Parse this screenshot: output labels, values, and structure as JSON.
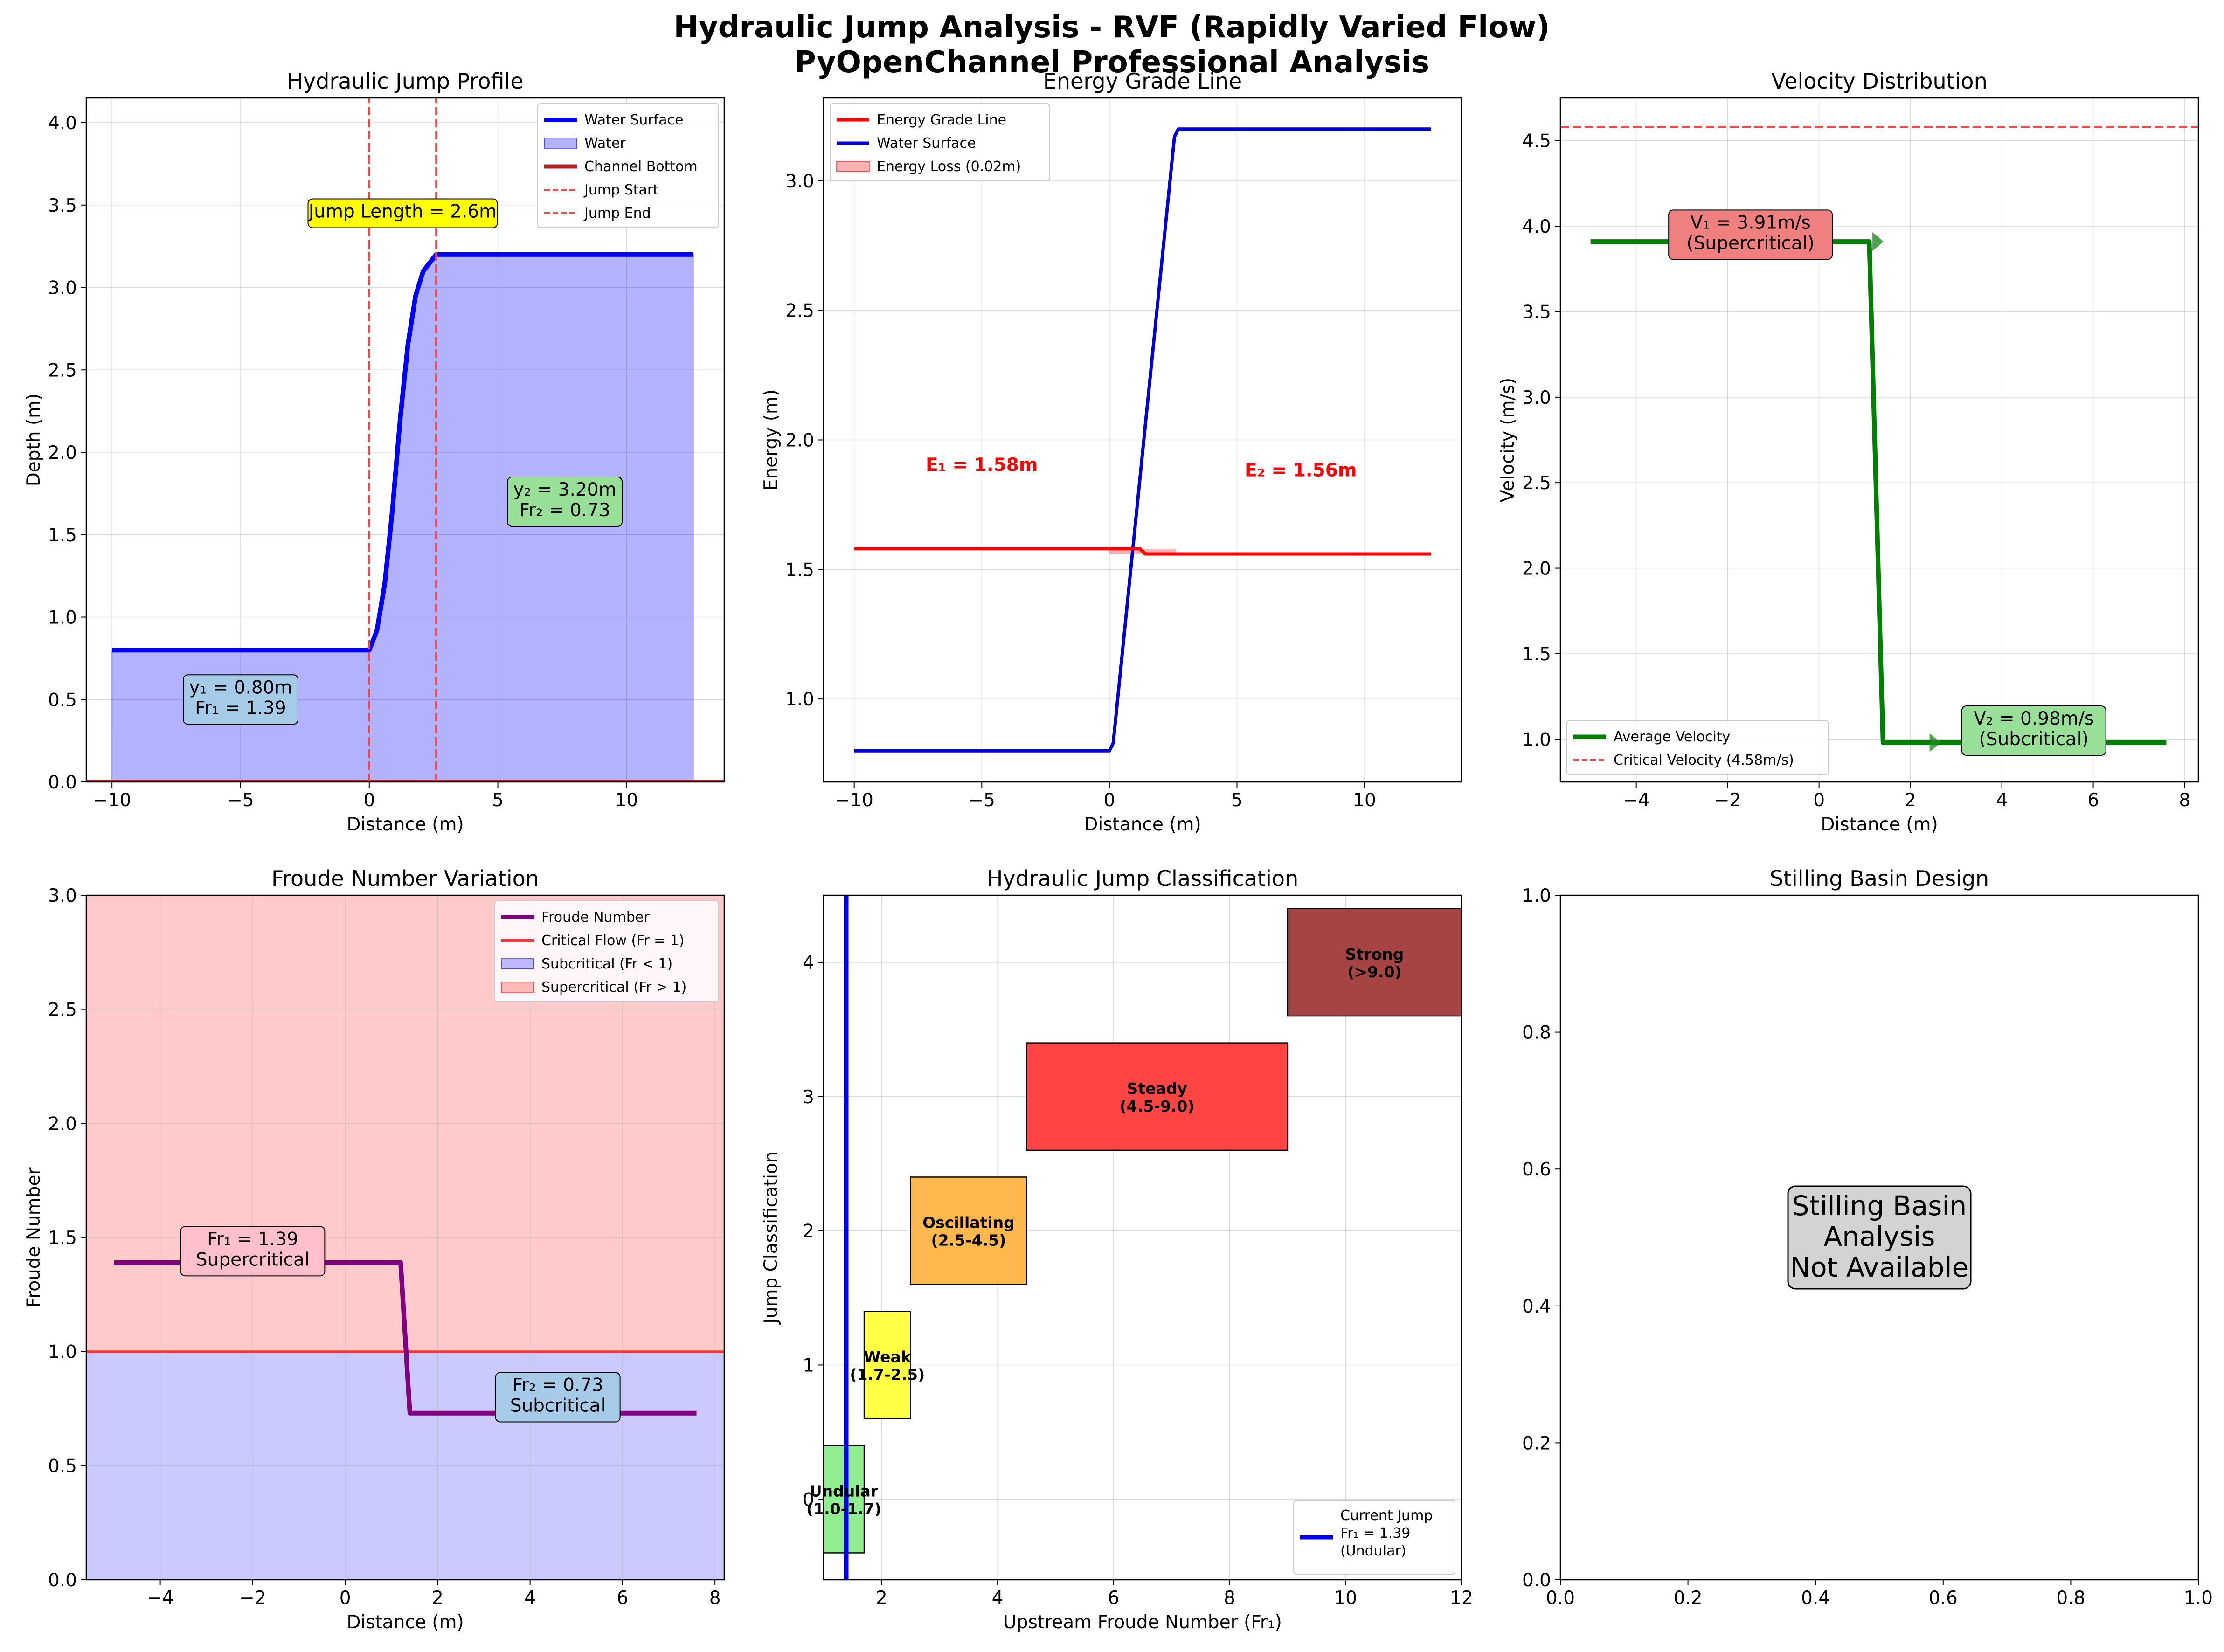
{
  "suptitle": [
    "Hydraulic Jump Analysis - RVF (Rapidly Varied Flow)",
    "PyOpenChannel Professional Analysis"
  ],
  "chart_data": [
    {
      "id": "profile",
      "type": "area",
      "title": "Hydraulic Jump Profile",
      "xlabel": "Distance (m)",
      "ylabel": "Depth (m)",
      "xlim": [
        -11,
        13.8
      ],
      "ylim": [
        0,
        4.15
      ],
      "xticks": [
        -10,
        -5,
        0,
        5,
        10
      ],
      "yticks": [
        0.0,
        0.5,
        1.0,
        1.5,
        2.0,
        2.5,
        3.0,
        3.5,
        4.0
      ],
      "grid": true,
      "legend_position": "upper right",
      "legend": [
        "Water Surface",
        "Water",
        "Channel Bottom",
        "Jump Start",
        "Jump End"
      ],
      "series": [
        {
          "name": "Water Surface",
          "color": "#0000ff",
          "x": [
            -10,
            0,
            0.3,
            0.6,
            0.9,
            1.2,
            1.5,
            1.8,
            2.1,
            2.4,
            2.6,
            12.6
          ],
          "y": [
            0.8,
            0.8,
            0.92,
            1.2,
            1.65,
            2.2,
            2.65,
            2.95,
            3.1,
            3.16,
            3.2,
            3.2
          ]
        },
        {
          "name": "Channel Bottom",
          "color": "#b22222",
          "x": [
            -11,
            13.8
          ],
          "y": [
            0,
            0
          ]
        },
        {
          "name": "Jump Start",
          "color": "#ff4444",
          "x": [
            0,
            0
          ],
          "y": [
            0,
            4.15
          ]
        },
        {
          "name": "Jump End",
          "color": "#ff4444",
          "x": [
            2.6,
            2.6
          ],
          "y": [
            0,
            4.15
          ]
        }
      ],
      "annotations": [
        {
          "text": "Jump Length = 2.6m",
          "x": 1.3,
          "y": 3.45,
          "bg": "#ffff00"
        },
        {
          "text": [
            "y₁ = 0.80m",
            "Fr₁ = 1.39"
          ],
          "x": -5,
          "y": 0.5,
          "bg": "#a6cbe8"
        },
        {
          "text": [
            "y₂ = 3.20m",
            "Fr₂ = 0.73"
          ],
          "x": 7.6,
          "y": 1.7,
          "bg": "#98e098"
        }
      ]
    },
    {
      "id": "energy",
      "type": "line",
      "title": "Energy Grade Line",
      "xlabel": "Distance (m)",
      "ylabel": "Energy (m)",
      "xlim": [
        -11.2,
        13.8
      ],
      "ylim": [
        0.68,
        3.32
      ],
      "xticks": [
        -10,
        -5,
        0,
        5,
        10
      ],
      "yticks": [
        1.0,
        1.5,
        2.0,
        2.5,
        3.0
      ],
      "grid": true,
      "legend_position": "upper left",
      "legend": [
        "Energy Grade Line",
        "Water Surface",
        "Energy Loss (0.02m)"
      ],
      "series": [
        {
          "name": "Energy Grade Line",
          "color": "#ff0000",
          "x": [
            -10,
            1.2,
            1.4,
            12.6
          ],
          "y": [
            1.58,
            1.58,
            1.56,
            1.56
          ]
        },
        {
          "name": "Water Surface",
          "color": "#0000dd",
          "x": [
            -10,
            0,
            0.15,
            2.55,
            2.7,
            12.6
          ],
          "y": [
            0.8,
            0.8,
            0.83,
            3.17,
            3.2,
            3.2
          ]
        }
      ],
      "energy_loss_band": {
        "x": [
          0,
          2.6
        ],
        "y": [
          1.56,
          1.58
        ]
      },
      "annotations": [
        {
          "text": "E₁ = 1.58m",
          "x": -5,
          "y": 1.88,
          "color": "#ff0000"
        },
        {
          "text": "E₂ = 1.56m",
          "x": 7.5,
          "y": 1.86,
          "color": "#ff0000"
        }
      ]
    },
    {
      "id": "velocity",
      "type": "line",
      "title": "Velocity Distribution",
      "xlabel": "Distance (m)",
      "ylabel": "Velocity (m/s)",
      "xlim": [
        -5.66,
        8.3
      ],
      "ylim": [
        0.75,
        4.75
      ],
      "xticks": [
        -4,
        -2,
        0,
        2,
        4,
        6,
        8
      ],
      "yticks": [
        1.0,
        1.5,
        2.0,
        2.5,
        3.0,
        3.5,
        4.0,
        4.5
      ],
      "grid": true,
      "legend_position": "lower left",
      "legend": [
        "Average Velocity",
        "Critical Velocity (4.58m/s)"
      ],
      "series": [
        {
          "name": "Average Velocity",
          "color": "#008000",
          "x": [
            -5,
            1.1,
            1.4,
            7.6
          ],
          "y": [
            3.91,
            3.91,
            0.98,
            0.98
          ]
        },
        {
          "name": "Critical Velocity (4.58m/s)",
          "color": "#ff4444",
          "x": [
            -5.66,
            8.3
          ],
          "y": [
            4.58,
            4.58
          ]
        }
      ],
      "arrows": [
        {
          "x": -1.0,
          "y": 3.91
        },
        {
          "x": 0.0,
          "y": 3.91
        },
        {
          "x": 1.25,
          "y": 3.91
        },
        {
          "x": 2.5,
          "y": 0.98
        },
        {
          "x": 3.7,
          "y": 0.98
        },
        {
          "x": 4.9,
          "y": 0.98
        },
        {
          "x": 6.1,
          "y": 0.98
        }
      ],
      "annotations": [
        {
          "text": [
            "V₁ = 3.91m/s",
            "(Supercritical)"
          ],
          "x": -1.5,
          "y": 3.95,
          "bg": "#f08080"
        },
        {
          "text": [
            "V₂ = 0.98m/s",
            "(Subcritical)"
          ],
          "x": 4.7,
          "y": 1.05,
          "bg": "#98e098"
        }
      ]
    },
    {
      "id": "froude",
      "type": "line",
      "title": "Froude Number Variation",
      "xlabel": "Distance (m)",
      "ylabel": "Froude Number",
      "xlim": [
        -5.6,
        8.2
      ],
      "ylim": [
        0,
        3.0
      ],
      "xticks": [
        -4,
        -2,
        0,
        2,
        4,
        6,
        8
      ],
      "yticks": [
        0.0,
        0.5,
        1.0,
        1.5,
        2.0,
        2.5,
        3.0
      ],
      "grid": true,
      "legend_position": "upper right",
      "legend": [
        "Froude Number",
        "Critical Flow (Fr = 1)",
        "Subcritical (Fr < 1)",
        "Supercritical (Fr > 1)"
      ],
      "series": [
        {
          "name": "Froude Number",
          "color": "#800080",
          "x": [
            -5,
            1.2,
            1.4,
            7.6
          ],
          "y": [
            1.39,
            1.39,
            0.73,
            0.73
          ]
        },
        {
          "name": "Critical Flow (Fr = 1)",
          "color": "#ff3333",
          "x": [
            -5.6,
            8.2
          ],
          "y": [
            1.0,
            1.0
          ]
        }
      ],
      "annotations": [
        {
          "text": [
            "Fr₁ = 1.39",
            "Supercritical"
          ],
          "x": -2,
          "y": 1.44,
          "bg": "#ffc0cb"
        },
        {
          "text": [
            "Fr₂ = 0.73",
            "Subcritical"
          ],
          "x": 4.6,
          "y": 0.8,
          "bg": "#a6cbe8"
        }
      ]
    },
    {
      "id": "classification",
      "type": "bar",
      "title": "Hydraulic Jump Classification",
      "xlabel": "Upstream Froude Number (Fr₁)",
      "ylabel": "Jump Classification",
      "xlim": [
        1,
        12
      ],
      "ylim": [
        -0.6,
        4.5
      ],
      "xticks": [
        2,
        4,
        6,
        8,
        10,
        12
      ],
      "yticks": [
        0,
        1,
        2,
        3,
        4
      ],
      "grid": true,
      "legend_position": "lower right",
      "legend": [
        [
          "Current Jump",
          "Fr₁ = 1.39",
          "(Undular)"
        ]
      ],
      "categories": [
        "Undular",
        "Weak",
        "Oscillating",
        "Steady",
        "Strong"
      ],
      "ranges": [
        [
          1.0,
          1.7
        ],
        [
          1.7,
          2.5
        ],
        [
          2.5,
          4.5
        ],
        [
          4.5,
          9.0
        ],
        [
          9.0,
          12.0
        ]
      ],
      "levels": [
        0,
        1,
        2,
        3,
        4
      ],
      "labels": [
        [
          "Undular",
          "(1.0-1.7)"
        ],
        [
          "Weak",
          "(1.7-2.5)"
        ],
        [
          "Oscillating",
          "(2.5-4.5)"
        ],
        [
          "Steady",
          "(4.5-9.0)"
        ],
        [
          "Strong",
          "(>9.0)"
        ]
      ],
      "colors": [
        "#90ee90",
        "#ffff44",
        "#ffb84d",
        "#ff4444",
        "#a64444"
      ],
      "current_fr": 1.39
    },
    {
      "id": "basin",
      "type": "other",
      "title": "Stilling Basin Design",
      "xlim": [
        0,
        1
      ],
      "ylim": [
        0,
        1
      ],
      "xticks": [
        0.0,
        0.2,
        0.4,
        0.6,
        0.8,
        1.0
      ],
      "yticks": [
        0.0,
        0.2,
        0.4,
        0.6,
        0.8,
        1.0
      ],
      "message": [
        "Stilling Basin",
        "Analysis",
        "Not Available"
      ]
    }
  ]
}
